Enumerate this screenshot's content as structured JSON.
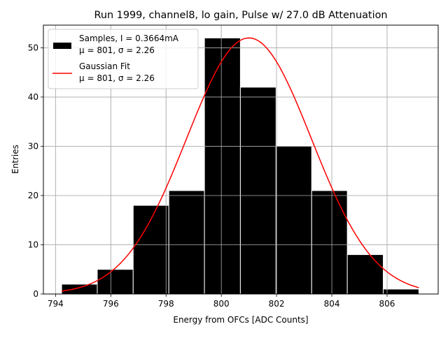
{
  "chart_data": {
    "type": "bar",
    "title": "Run 1999, channel8, lo gain, Pulse w/ 27.0 dB Attenuation",
    "xlabel": "Energy from OFCs [ADC Counts]",
    "ylabel": "Entries",
    "xlim": [
      793.56,
      807.85
    ],
    "ylim": [
      0,
      54.6
    ],
    "xticks": [
      794,
      796,
      798,
      800,
      802,
      804,
      806
    ],
    "yticks": [
      0,
      10,
      20,
      30,
      40,
      50
    ],
    "grid": true,
    "legend_position": "top-left",
    "bin_edges": [
      794.22,
      795.51,
      796.81,
      798.1,
      799.39,
      800.69,
      801.98,
      803.27,
      804.56,
      805.86,
      807.15
    ],
    "counts": [
      2,
      5,
      18,
      21,
      52,
      42,
      30,
      21,
      8,
      1
    ],
    "series": [
      {
        "name": "Samples, I = 0.3664mA",
        "name_line2": "μ = 801, σ = 2.26",
        "type": "histogram",
        "color": "#000000",
        "edge_color": "#ffffff"
      },
      {
        "name": "Gaussian Fit",
        "name_line2": "μ = 801, σ = 2.26",
        "type": "line",
        "color": "#ff0000",
        "amplitude": 52.0,
        "mu": 801.0,
        "sigma": 2.26,
        "x_range": [
          794.22,
          807.15
        ]
      }
    ]
  }
}
